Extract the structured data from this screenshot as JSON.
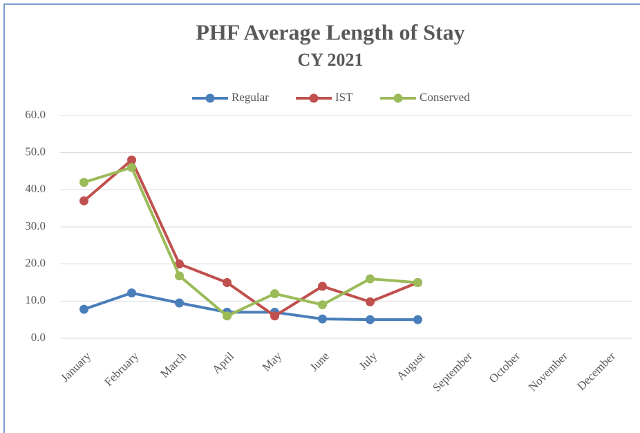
{
  "chart_data": {
    "type": "line",
    "title": "PHF Average Length of Stay",
    "subtitle": "CY 2021",
    "categories": [
      "January",
      "February",
      "March",
      "April",
      "May",
      "June",
      "July",
      "August",
      "September",
      "October",
      "November",
      "December"
    ],
    "series": [
      {
        "name": "Regular",
        "color": "#4a7ebb",
        "values": [
          7.8,
          12.2,
          9.5,
          7,
          7,
          5.2,
          5,
          5,
          null,
          null,
          null,
          null
        ]
      },
      {
        "name": "IST",
        "color": "#c0504d",
        "values": [
          37,
          48,
          20,
          15,
          6,
          14,
          9.8,
          15,
          null,
          null,
          null,
          null
        ]
      },
      {
        "name": "Conserved",
        "color": "#9bbb59",
        "values": [
          42,
          46,
          16.8,
          6,
          12,
          9,
          16,
          15,
          null,
          null,
          null,
          null
        ]
      }
    ],
    "ylim": [
      0,
      60
    ],
    "yticks": [
      {
        "value": 0,
        "label": "0.0"
      },
      {
        "value": 10,
        "label": "10.0"
      },
      {
        "value": 20,
        "label": "20.0"
      },
      {
        "value": 30,
        "label": "30.0"
      },
      {
        "value": 40,
        "label": "40.0"
      },
      {
        "value": 50,
        "label": "50.0"
      },
      {
        "value": 60,
        "label": "60.0"
      }
    ],
    "grid": true,
    "legend": "top"
  }
}
